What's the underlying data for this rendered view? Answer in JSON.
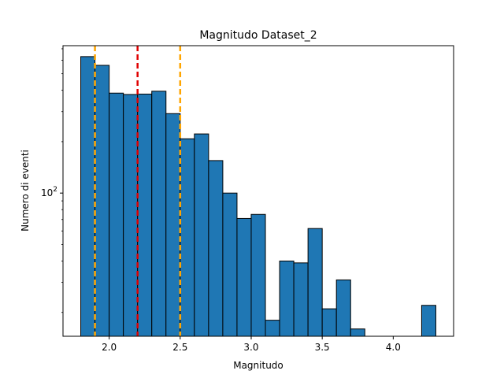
{
  "chart_data": {
    "type": "bar",
    "title": "Magnitudo Dataset_2",
    "xlabel": "Magnitudo",
    "ylabel": "Numero di eventi",
    "yscale": "log",
    "xlim": [
      1.675,
      4.425
    ],
    "ylim": [
      14.5,
      730
    ],
    "x_ticks": [
      2.0,
      2.5,
      3.0,
      3.5,
      4.0
    ],
    "x_tick_labels": [
      "2.0",
      "2.5",
      "3.0",
      "3.5",
      "4.0"
    ],
    "y_ticks": [
      100
    ],
    "y_tick_labels": [
      {
        "base": "10",
        "exp": "2"
      }
    ],
    "bar_color": "#1f77b4",
    "edge_color": "#000000",
    "bin_width": 0.1,
    "bins": [
      {
        "x0": 1.8,
        "count": 630
      },
      {
        "x0": 1.9,
        "count": 560
      },
      {
        "x0": 2.0,
        "count": 385
      },
      {
        "x0": 2.1,
        "count": 378
      },
      {
        "x0": 2.2,
        "count": 380
      },
      {
        "x0": 2.3,
        "count": 395
      },
      {
        "x0": 2.4,
        "count": 292
      },
      {
        "x0": 2.5,
        "count": 208
      },
      {
        "x0": 2.6,
        "count": 222
      },
      {
        "x0": 2.7,
        "count": 155
      },
      {
        "x0": 2.8,
        "count": 100
      },
      {
        "x0": 2.9,
        "count": 71
      },
      {
        "x0": 3.0,
        "count": 75
      },
      {
        "x0": 3.1,
        "count": 18
      },
      {
        "x0": 3.2,
        "count": 40
      },
      {
        "x0": 3.3,
        "count": 39
      },
      {
        "x0": 3.4,
        "count": 62
      },
      {
        "x0": 3.5,
        "count": 21
      },
      {
        "x0": 3.6,
        "count": 31
      },
      {
        "x0": 3.7,
        "count": 16
      },
      {
        "x0": 4.2,
        "count": 22
      }
    ],
    "vlines": [
      {
        "x": 1.9,
        "color": "#ffa500",
        "style": "dashed"
      },
      {
        "x": 2.2,
        "color": "#e00000",
        "style": "dashed"
      },
      {
        "x": 2.5,
        "color": "#ffa500",
        "style": "dashed"
      }
    ]
  }
}
